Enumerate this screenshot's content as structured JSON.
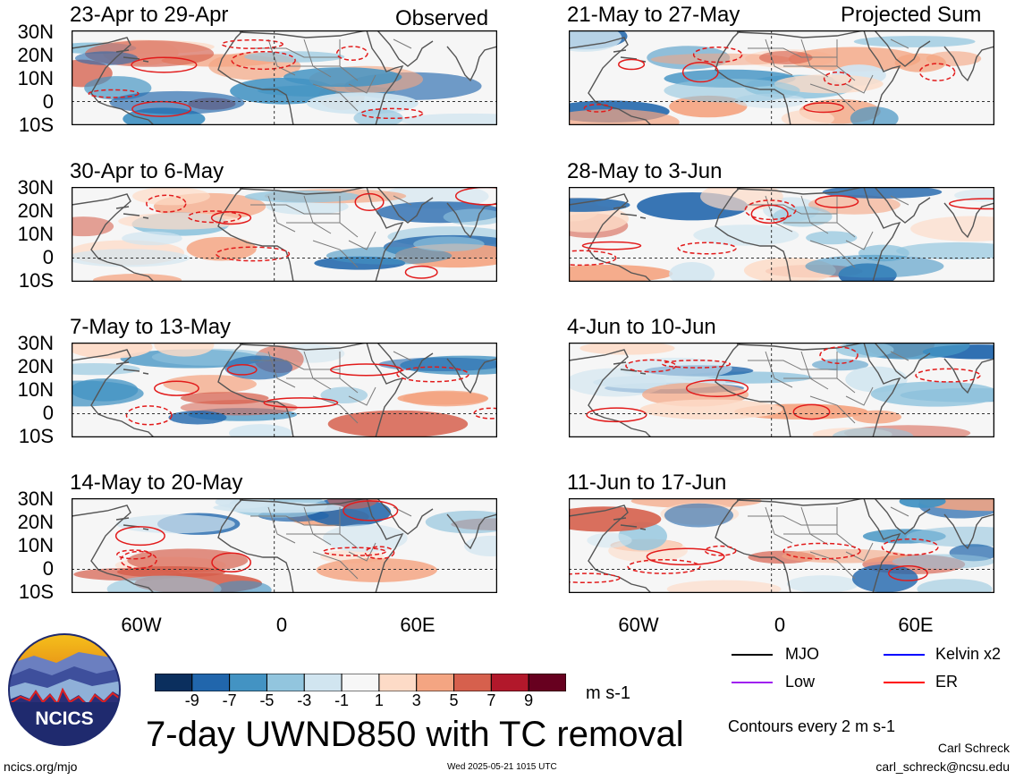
{
  "header": {
    "left_label": "Observed",
    "right_label": "Projected Sum"
  },
  "panels_left": [
    {
      "title": "23-Apr to 29-Apr"
    },
    {
      "title": "30-Apr to 6-May"
    },
    {
      "title": "7-May to 13-May"
    },
    {
      "title": "14-May to 20-May"
    }
  ],
  "panels_right": [
    {
      "title": "21-May to 27-May"
    },
    {
      "title": "28-May to 3-Jun"
    },
    {
      "title": "4-Jun to 10-Jun"
    },
    {
      "title": "11-Jun to 17-Jun"
    }
  ],
  "lat_labels": [
    "30N",
    "20N",
    "10N",
    "0",
    "10S"
  ],
  "lon_labels": [
    "60W",
    "0",
    "60E"
  ],
  "colorbar": {
    "colors": [
      "#0b2f5e",
      "#2166ac",
      "#4393c3",
      "#92c5de",
      "#d1e5f0",
      "#f7f7f7",
      "#fddbc7",
      "#f4a582",
      "#d6604d",
      "#b2182b",
      "#67001f"
    ],
    "ticks": [
      "-9",
      "-7",
      "-5",
      "-3",
      "-1",
      "1",
      "3",
      "5",
      "7",
      "9"
    ],
    "units": "m s-1"
  },
  "legend": {
    "mjo": {
      "label": "MJO",
      "color": "#000000"
    },
    "kelvin": {
      "label": "Kelvin x2",
      "color": "#0000ff"
    },
    "low": {
      "label": "Low",
      "color": "#a020f0"
    },
    "er": {
      "label": "ER",
      "color": "#ff0000"
    },
    "contours": "Contours every 2 m s-1"
  },
  "main_title": "7-day UWND850 with TC removal",
  "logo_text": "NCICS",
  "footer": {
    "url": "ncics.org/mjo",
    "timestamp": "Wed 2025-05-21 1015 UTC",
    "author": "Carl Schreck",
    "email": "carl_schreck@ncsu.edu"
  }
}
